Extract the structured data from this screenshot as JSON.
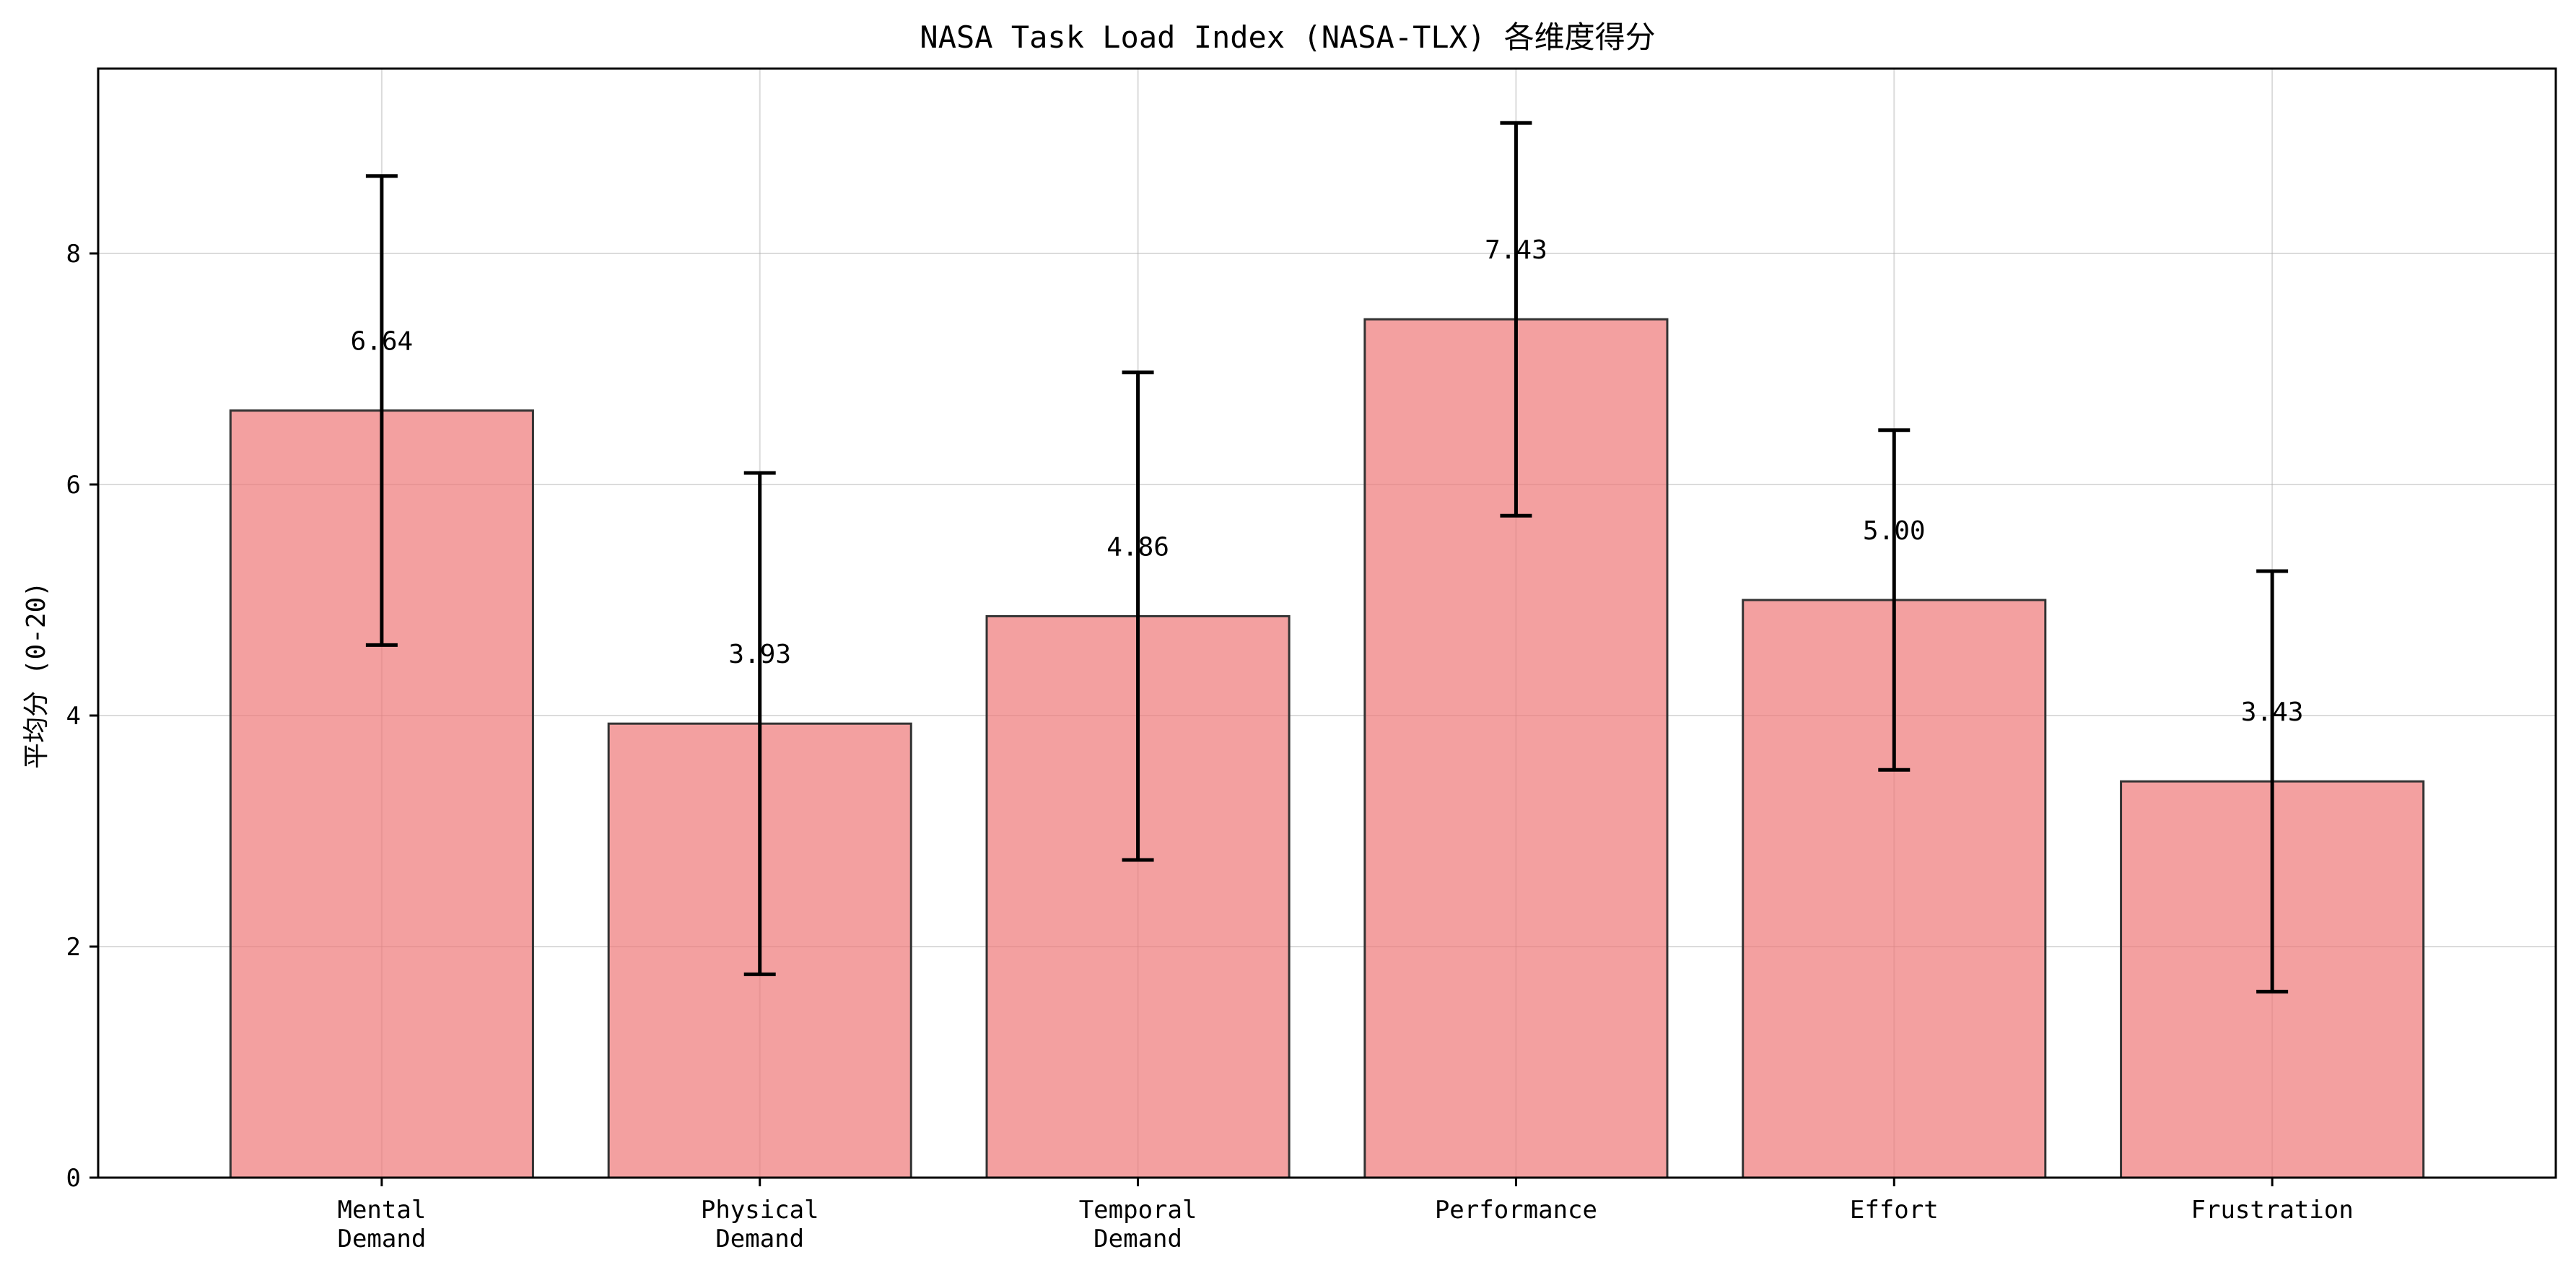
{
  "chart_data": {
    "type": "bar",
    "title": "NASA Task Load Index (NASA-TLX) 各维度得分",
    "xlabel": "",
    "ylabel": "平均分 (0-20)",
    "ylim": [
      0,
      9.6
    ],
    "yticks": [
      0,
      2,
      4,
      6,
      8
    ],
    "grid": true,
    "categories": [
      [
        "Mental",
        "Demand"
      ],
      [
        "Physical",
        "Demand"
      ],
      [
        "Temporal",
        "Demand"
      ],
      [
        "Performance"
      ],
      [
        "Effort"
      ],
      [
        "Frustration"
      ]
    ],
    "values": [
      6.64,
      3.93,
      4.86,
      7.43,
      5.0,
      3.43
    ],
    "value_labels": [
      "6.64",
      "3.93",
      "4.86",
      "7.43",
      "5.00",
      "3.43"
    ],
    "error": [
      2.03,
      2.17,
      2.11,
      1.7,
      1.47,
      1.82
    ],
    "bar_color": "#ee7777",
    "edge_color": "#333333"
  }
}
